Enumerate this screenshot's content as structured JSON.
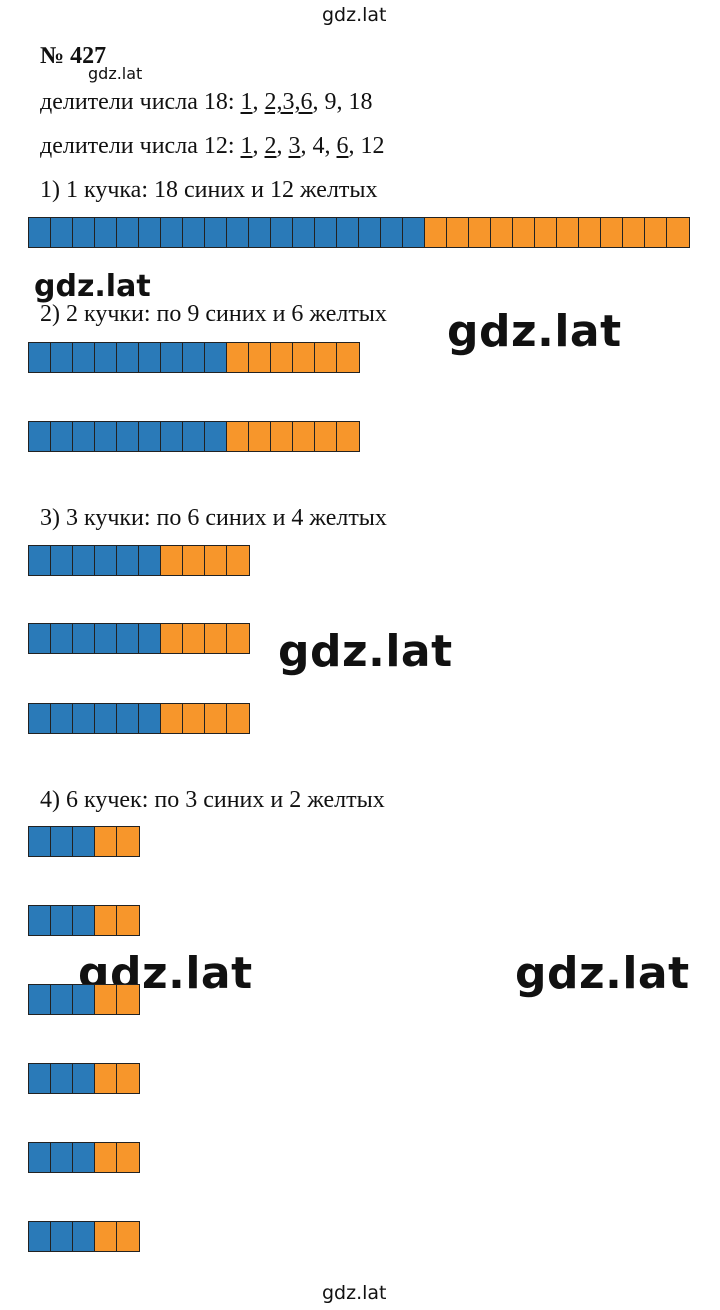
{
  "watermarks": {
    "top": "gdz.lat",
    "under_title": "gdz.lat",
    "left_mid": "gdz.lat",
    "right_mid": "gdz.lat",
    "center": "gdz.lat",
    "lower_left": "gdz.lat",
    "lower_right": "gdz.lat",
    "bottom": "gdz.lat"
  },
  "problem": {
    "number": "№ 427",
    "divisors_18": {
      "prefix": "делители числа 18: ",
      "items": [
        "1",
        ", ",
        "2,3,6",
        ", 9, 18"
      ]
    },
    "divisors_12": {
      "prefix": "делители числа 12: ",
      "items": [
        "1",
        ", ",
        "2",
        ", ",
        "3",
        ", 4, ",
        "6",
        ", 12"
      ]
    }
  },
  "cases": [
    {
      "label": "1) 1 кучка: 18 синих и 12 желтых",
      "piles": 1,
      "blue": 18,
      "yellow": 12
    },
    {
      "label": "2) 2 кучки: по 9 синих и 6 желтых",
      "piles": 2,
      "blue": 9,
      "yellow": 6
    },
    {
      "label": "3) 3 кучки: по 6 синих и 4 желтых",
      "piles": 3,
      "blue": 6,
      "yellow": 4
    },
    {
      "label": "4) 6 кучек: по 3 синих и 2 желтых",
      "piles": 6,
      "blue": 3,
      "yellow": 2
    }
  ],
  "colors": {
    "blue": "#2a7ab8",
    "yellow": "#f7962b"
  }
}
